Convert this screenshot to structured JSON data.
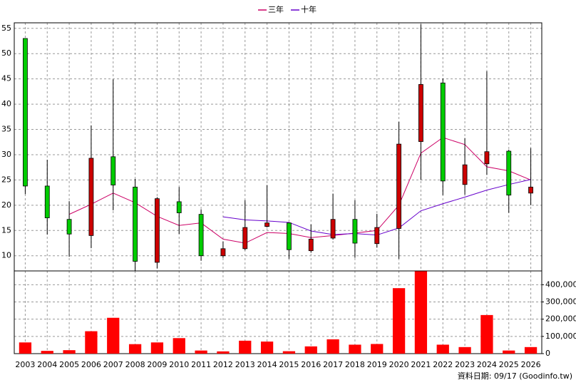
{
  "chart_data": {
    "type": "candlestick",
    "categories": [
      "2003",
      "2004",
      "2005",
      "2006",
      "2007",
      "2008",
      "2009",
      "2010",
      "2011",
      "2012",
      "2013",
      "2014",
      "2015",
      "2016",
      "2017",
      "2018",
      "2019",
      "2020",
      "2021",
      "2022",
      "2023",
      "2024",
      "2025",
      "2026"
    ],
    "open": [
      53,
      23.8,
      17.2,
      14,
      29.6,
      23.6,
      8.7,
      20.7,
      18.2,
      10,
      11.4,
      15.8,
      16.5,
      11,
      13.5,
      17.2,
      12.4,
      15.4,
      32.6,
      44.2,
      24.1,
      28.2,
      30.7,
      22.4
    ],
    "high": [
      53,
      29,
      20.8,
      35.8,
      44.9,
      25.2,
      21.6,
      23.6,
      19.2,
      12.8,
      21,
      24,
      16.6,
      16.2,
      22.3,
      21,
      18.3,
      36.5,
      55.8,
      45.1,
      33.3,
      46.5,
      31,
      31.3
    ],
    "low": [
      22.2,
      14.2,
      9.8,
      11.5,
      19,
      7,
      7.5,
      14.3,
      9,
      9.6,
      11.1,
      15.6,
      9.4,
      10.6,
      13.2,
      9.6,
      11.6,
      9.4,
      25,
      22,
      22.1,
      26,
      18.5,
      20
    ],
    "close": [
      23.8,
      17.5,
      14.3,
      29.3,
      24,
      8.9,
      21.3,
      18.5,
      10,
      11.4,
      15.6,
      16.5,
      11.2,
      13.3,
      17.2,
      12.5,
      15.6,
      32.1,
      43.9,
      24.8,
      28,
      30.6,
      22,
      23.6
    ],
    "up_color": "#cc0000",
    "down_color": "#00cc00",
    "ylim": [
      7,
      56.1
    ],
    "yticks": [
      10,
      15,
      20,
      25,
      30,
      35,
      40,
      45,
      50,
      55
    ],
    "grid": true,
    "lines": [
      {
        "name": "三年",
        "color": "#cc0066",
        "values": [
          null,
          null,
          18.2,
          20.2,
          22.4,
          20.5,
          17.8,
          16,
          16.5,
          13.3,
          12.5,
          14.6,
          14.4,
          13.6,
          14,
          14.5,
          15,
          20,
          30.3,
          33.4,
          32,
          27.6,
          26.8,
          25
        ]
      },
      {
        "name": "十年",
        "color": "#6600cc",
        "values": [
          null,
          null,
          null,
          null,
          null,
          null,
          null,
          null,
          null,
          17.7,
          17.1,
          16.9,
          16.6,
          14.9,
          14.2,
          14.4,
          14.1,
          15.5,
          18.9,
          20.3,
          21.6,
          23,
          24.1,
          25.1
        ]
      }
    ],
    "volume": {
      "color": "#ff0000",
      "values": [
        65000,
        16000,
        20000,
        130000,
        208000,
        55000,
        65000,
        90000,
        18000,
        13000,
        75000,
        70000,
        14000,
        42000,
        83000,
        52000,
        56000,
        380000,
        478000,
        52000,
        38000,
        224000,
        18000,
        38000
      ],
      "ylim": [
        0,
        480000
      ],
      "yticks": [
        0,
        {
          "value": 100000,
          "label": "100,000"
        },
        {
          "value": 200000,
          "label": "200,000"
        },
        {
          "value": 300000,
          "label": "300,000"
        },
        {
          "value": 400000,
          "label": "400,000"
        }
      ]
    },
    "footer": "資料日期: 09/17 (Goodinfo.tw)"
  }
}
